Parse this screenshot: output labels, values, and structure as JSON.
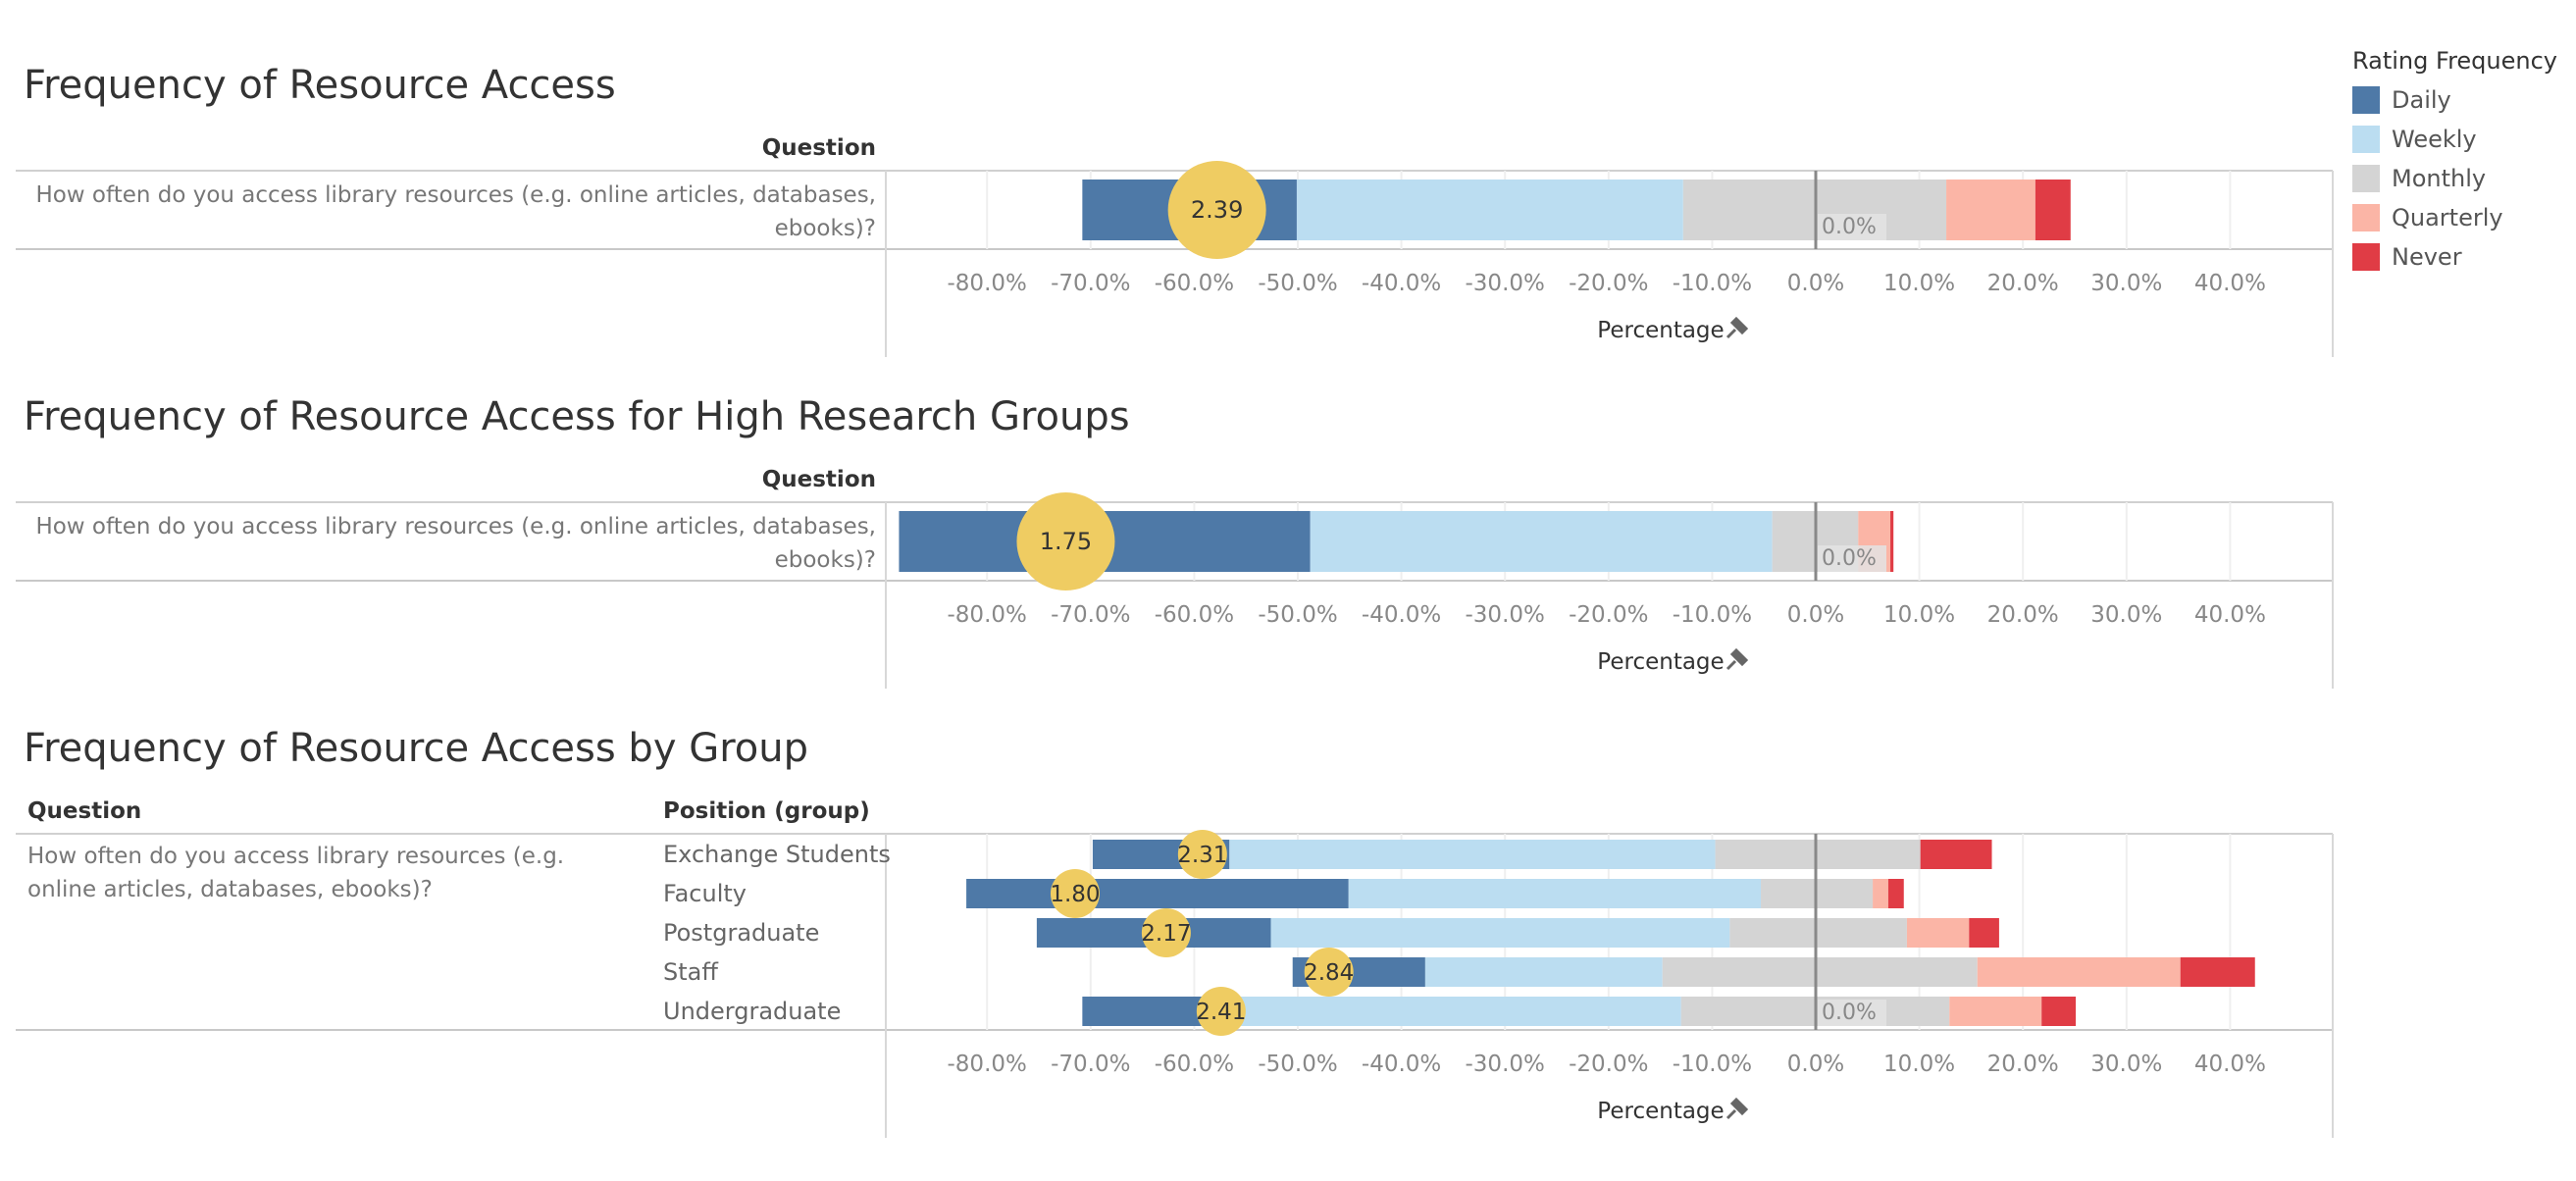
{
  "legend": {
    "title": "Rating Frequency",
    "items": [
      {
        "label": "Daily",
        "color": "#4E79A7"
      },
      {
        "label": "Weekly",
        "color": "#BBDDF1"
      },
      {
        "label": "Monthly",
        "color": "#D4D4D4"
      },
      {
        "label": "Quarterly",
        "color": "#FBB5A6"
      },
      {
        "label": "Never",
        "color": "#E03C45"
      }
    ]
  },
  "marker_color": "#EFCC62",
  "chart_data": [
    {
      "type": "bar",
      "orientation": "horizontal",
      "stacked": "diverging",
      "title": "Frequency of Resource Access",
      "row_header": "Question",
      "xlabel": "Percentage",
      "xticks": [
        "-80.0%",
        "-70.0%",
        "-60.0%",
        "-50.0%",
        "-40.0%",
        "-30.0%",
        "-20.0%",
        "-10.0%",
        "0.0%",
        "10.0%",
        "20.0%",
        "30.0%",
        "40.0%"
      ],
      "xlim": [
        -89,
        50
      ],
      "rows": [
        {
          "question": "How often do you access library resources (e.g. online articles, databases, ebooks)?",
          "start": -70.8,
          "segments": [
            {
              "category": "Daily",
              "value": 20.7
            },
            {
              "category": "Weekly",
              "value": 37.3
            },
            {
              "category": "Monthly",
              "value": 25.4
            },
            {
              "category": "Quarterly",
              "value": 8.6
            },
            {
              "category": "Never",
              "value": 3.4
            }
          ],
          "avg_position": -57.8,
          "avg_label": "2.39",
          "zero_label": "0.0%"
        }
      ]
    },
    {
      "type": "bar",
      "orientation": "horizontal",
      "stacked": "diverging",
      "title": "Frequency of Resource Access for High Research Groups",
      "row_header": "Question",
      "xlabel": "Percentage",
      "xticks": [
        "-80.0%",
        "-70.0%",
        "-60.0%",
        "-50.0%",
        "-40.0%",
        "-30.0%",
        "-20.0%",
        "-10.0%",
        "0.0%",
        "10.0%",
        "20.0%",
        "30.0%",
        "40.0%"
      ],
      "xlim": [
        -89,
        50
      ],
      "rows": [
        {
          "question": "How often do you access library resources (e.g. online articles, databases, ebooks)?",
          "start": -88.5,
          "segments": [
            {
              "category": "Daily",
              "value": 39.7
            },
            {
              "category": "Weekly",
              "value": 44.6
            },
            {
              "category": "Monthly",
              "value": 8.3
            },
            {
              "category": "Quarterly",
              "value": 3.1
            },
            {
              "category": "Never",
              "value": 0.3
            }
          ],
          "avg_position": -72.4,
          "avg_label": "1.75",
          "zero_label": "0.0%"
        }
      ]
    },
    {
      "type": "bar",
      "orientation": "horizontal",
      "stacked": "diverging",
      "title": "Frequency of Resource Access by Group",
      "row_header": "Question",
      "group_header": "Position (group)",
      "xlabel": "Percentage",
      "xticks": [
        "-80.0%",
        "-70.0%",
        "-60.0%",
        "-50.0%",
        "-40.0%",
        "-30.0%",
        "-20.0%",
        "-10.0%",
        "0.0%",
        "10.0%",
        "20.0%",
        "30.0%",
        "40.0%"
      ],
      "xlim": [
        -89,
        50
      ],
      "question": "How often do you access library resources (e.g. online articles, databases, ebooks)?",
      "rows": [
        {
          "group": "Exchange Students",
          "start": -69.8,
          "segments": [
            {
              "category": "Daily",
              "value": 13.2
            },
            {
              "category": "Weekly",
              "value": 46.9
            },
            {
              "category": "Monthly",
              "value": 19.8
            },
            {
              "category": "Quarterly",
              "value": 0
            },
            {
              "category": "Never",
              "value": 6.9
            }
          ],
          "avg_position": -59.2,
          "avg_label": "2.31"
        },
        {
          "group": "Faculty",
          "start": -82.0,
          "segments": [
            {
              "category": "Daily",
              "value": 36.9
            },
            {
              "category": "Weekly",
              "value": 39.8
            },
            {
              "category": "Monthly",
              "value": 10.8
            },
            {
              "category": "Quarterly",
              "value": 1.5
            },
            {
              "category": "Never",
              "value": 1.5
            }
          ],
          "avg_position": -71.5,
          "avg_label": "1.80"
        },
        {
          "group": "Postgraduate",
          "start": -75.2,
          "segments": [
            {
              "category": "Daily",
              "value": 22.6
            },
            {
              "category": "Weekly",
              "value": 44.3
            },
            {
              "category": "Monthly",
              "value": 17.1
            },
            {
              "category": "Quarterly",
              "value": 6.0
            },
            {
              "category": "Never",
              "value": 2.9
            }
          ],
          "avg_position": -62.7,
          "avg_label": "2.17"
        },
        {
          "group": "Staff",
          "start": -50.5,
          "segments": [
            {
              "category": "Daily",
              "value": 12.8
            },
            {
              "category": "Weekly",
              "value": 22.9
            },
            {
              "category": "Monthly",
              "value": 30.4
            },
            {
              "category": "Quarterly",
              "value": 19.6
            },
            {
              "category": "Never",
              "value": 7.2
            }
          ],
          "avg_position": -47.0,
          "avg_label": "2.84"
        },
        {
          "group": "Undergraduate",
          "start": -70.8,
          "segments": [
            {
              "category": "Daily",
              "value": 11.7
            },
            {
              "category": "Weekly",
              "value": 46.1
            },
            {
              "category": "Monthly",
              "value": 25.9
            },
            {
              "category": "Quarterly",
              "value": 8.9
            },
            {
              "category": "Never",
              "value": 3.3
            }
          ],
          "avg_position": -57.4,
          "avg_label": "2.41",
          "zero_label": "0.0%"
        }
      ]
    }
  ]
}
